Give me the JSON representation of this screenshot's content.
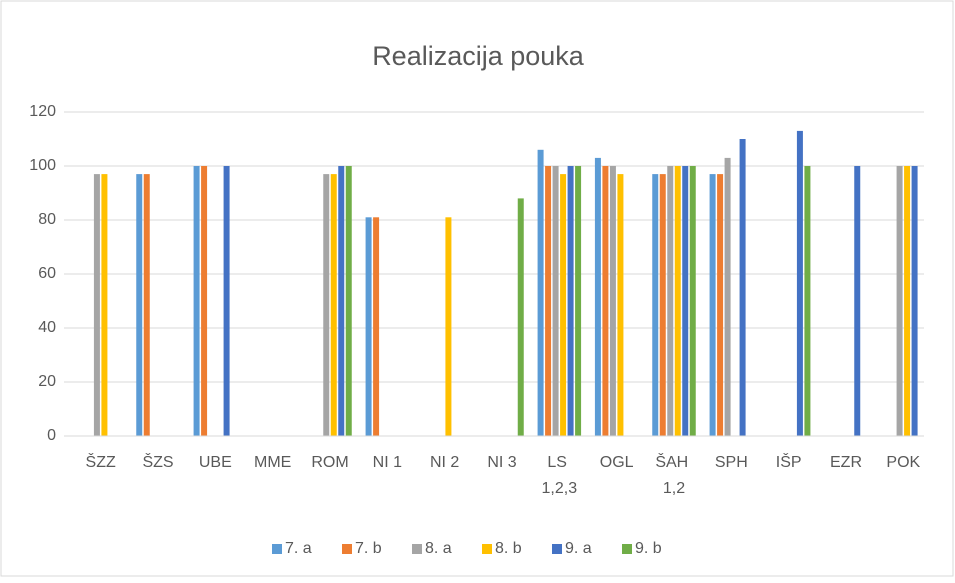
{
  "chart_data": {
    "type": "bar",
    "title": "Realizacija pouka",
    "categories": [
      "ŠZZ",
      "ŠZS",
      "UBE",
      "MME",
      "ROM",
      "NI 1",
      "NI 2",
      "NI 3",
      "LS 1,2,3",
      "OGL",
      "ŠAH 1,2",
      "SPH",
      "IŠP",
      "EZR",
      "POK"
    ],
    "series": [
      {
        "name": "7. a",
        "color": "#5b9bd5",
        "values": [
          null,
          97,
          100,
          null,
          null,
          81,
          null,
          null,
          106,
          103,
          97,
          97,
          null,
          null,
          null
        ]
      },
      {
        "name": "7. b",
        "color": "#ed7d31",
        "values": [
          null,
          97,
          100,
          null,
          null,
          81,
          null,
          null,
          100,
          100,
          97,
          97,
          null,
          null,
          null
        ]
      },
      {
        "name": "8. a",
        "color": "#a5a5a5",
        "values": [
          97,
          null,
          null,
          null,
          97,
          null,
          null,
          null,
          100,
          100,
          100,
          103,
          null,
          null,
          100
        ]
      },
      {
        "name": "8. b",
        "color": "#ffc000",
        "values": [
          97,
          null,
          null,
          null,
          97,
          null,
          81,
          null,
          97,
          97,
          100,
          null,
          null,
          null,
          100
        ]
      },
      {
        "name": "9. a",
        "color": "#4472c4",
        "values": [
          null,
          null,
          100,
          null,
          100,
          null,
          null,
          null,
          100,
          null,
          100,
          110,
          113,
          100,
          100
        ]
      },
      {
        "name": "9. b",
        "color": "#70ad47",
        "values": [
          null,
          null,
          null,
          null,
          100,
          null,
          null,
          88,
          100,
          null,
          100,
          null,
          100,
          null,
          null
        ]
      }
    ],
    "ylim": [
      0,
      120
    ],
    "yticks": [
      0,
      20,
      40,
      60,
      80,
      100,
      120
    ],
    "grid": true,
    "legend": "bottom"
  }
}
